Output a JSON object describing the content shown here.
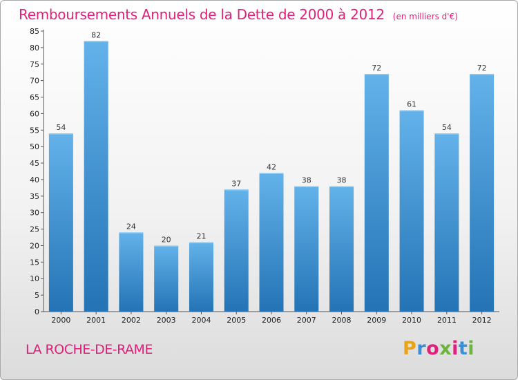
{
  "header": {
    "title": "Remboursements Annuels de la Dette de 2000 à 2012",
    "unit_note": "(en milliers d'€)"
  },
  "footer": {
    "commune": "LA ROCHE-DE-RAME",
    "brand": "Proxiti",
    "brand_colors": [
      "#e8a317",
      "#3a8fd6",
      "#e0207a",
      "#6cb33f",
      "#e0207a",
      "#3a8fd6",
      "#6cb33f"
    ]
  },
  "chart_data": {
    "type": "bar",
    "title": "Remboursements Annuels de la Dette de 2000 à 2012",
    "subtitle": "(en milliers d'€)",
    "categories": [
      "2000",
      "2001",
      "2002",
      "2003",
      "2004",
      "2005",
      "2006",
      "2007",
      "2008",
      "2009",
      "2010",
      "2011",
      "2012"
    ],
    "values": [
      54,
      82,
      24,
      20,
      21,
      37,
      42,
      38,
      38,
      72,
      61,
      54,
      72
    ],
    "data_labels": [
      "54",
      "82",
      "24",
      "20",
      "21",
      "37",
      "42",
      "38",
      "38",
      "72",
      "61",
      "54",
      "72"
    ],
    "ylim": [
      0,
      85
    ],
    "yticks": [
      0,
      5,
      10,
      15,
      20,
      25,
      30,
      35,
      40,
      45,
      50,
      55,
      60,
      65,
      70,
      75,
      80,
      85
    ],
    "grid": false,
    "legend": "none",
    "bar_color_top": "#63b2ea",
    "bar_color_bottom": "#2473b5",
    "axis_color": "#555555"
  }
}
